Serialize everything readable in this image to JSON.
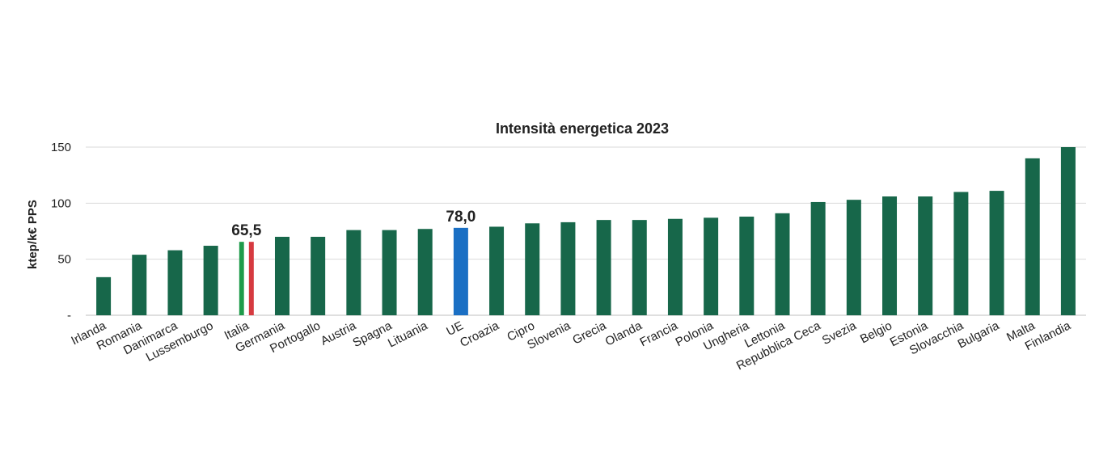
{
  "chart_data": {
    "type": "bar",
    "title": "Intensità energetica 2023",
    "xlabel": "",
    "ylabel": "ktep/k€ PPS",
    "ylim": [
      0,
      150
    ],
    "yticks": [
      {
        "value": 0,
        "label": "-"
      },
      {
        "value": 50,
        "label": "50"
      },
      {
        "value": 100,
        "label": "100"
      },
      {
        "value": 150,
        "label": "150"
      }
    ],
    "grid": true,
    "categories": [
      "Irlanda",
      "Romania",
      "Danimarca",
      "Lussemburgo",
      "Italia",
      "Germania",
      "Portogallo",
      "Austria",
      "Spagna",
      "Lituania",
      "UE",
      "Croazia",
      "Cipro",
      "Slovenia",
      "Grecia",
      "Olanda",
      "Francia",
      "Polonia",
      "Ungheria",
      "Lettonia",
      "Repubblica Ceca",
      "Svezia",
      "Belgio",
      "Estonia",
      "Slovacchia",
      "Bulgaria",
      "Malta",
      "Finlandia"
    ],
    "values": [
      34,
      54,
      58,
      62,
      65.5,
      70,
      70,
      76,
      76,
      77,
      78.0,
      79,
      82,
      83,
      85,
      85,
      86,
      87,
      88,
      91,
      101,
      103,
      106,
      106,
      110,
      111,
      140,
      150
    ],
    "highlights": [
      {
        "category": "Italia",
        "label": "65,5",
        "style": "tricolore"
      },
      {
        "category": "UE",
        "label": "78,0",
        "style": "blue"
      }
    ]
  },
  "colors": {
    "bar": "#17674a",
    "eu": "#1a6fc4",
    "it_green": "#1e9a4a",
    "it_white": "#ffffff",
    "it_red": "#d63a40"
  }
}
